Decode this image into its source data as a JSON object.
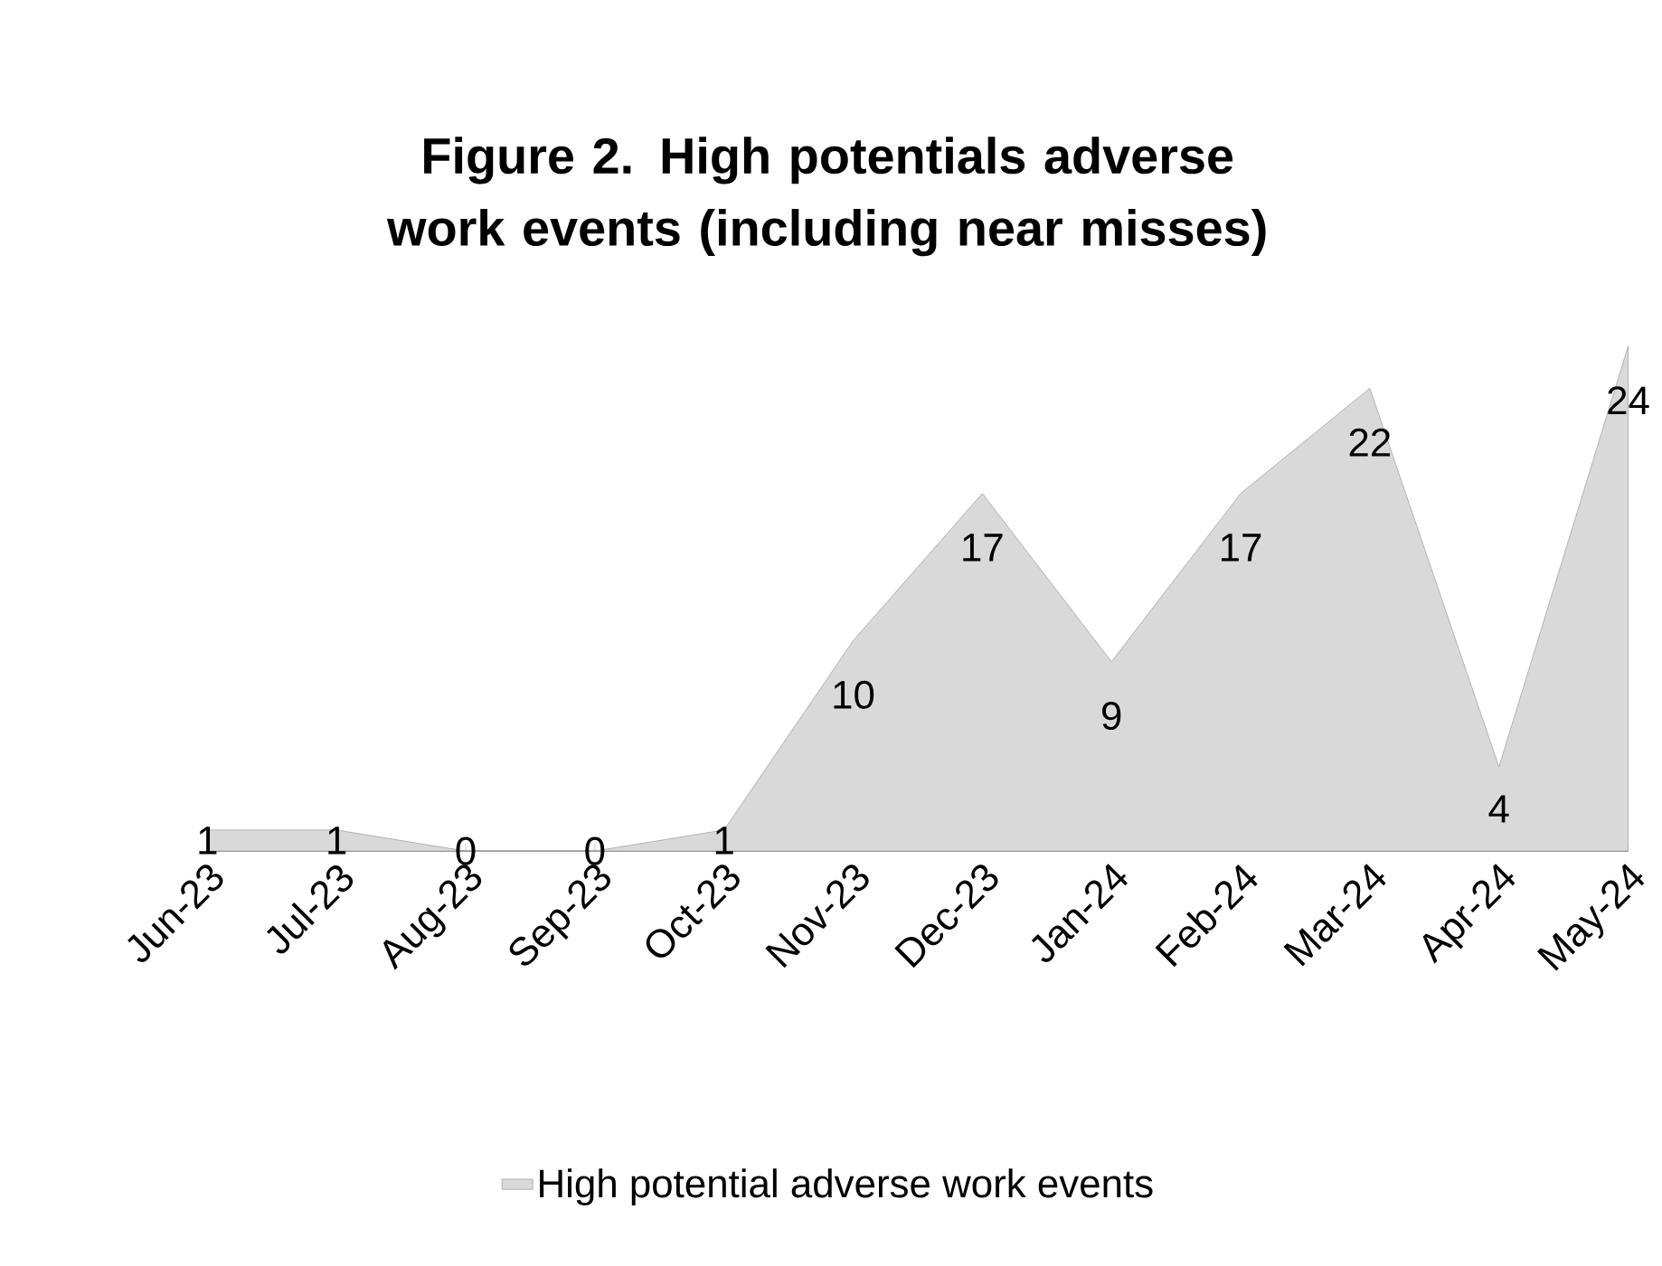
{
  "chart_data": {
    "type": "area",
    "title": "Figure 2. High potentials adverse work events (including near misses)",
    "categories": [
      "Jun-23",
      "Jul-23",
      "Aug-23",
      "Sep-23",
      "Oct-23",
      "Nov-23",
      "Dec-23",
      "Jan-24",
      "Feb-24",
      "Mar-24",
      "Apr-24",
      "May-24"
    ],
    "series": [
      {
        "name": "High potential adverse work events",
        "color": "#d9d9d9",
        "values": [
          1,
          1,
          0,
          0,
          1,
          10,
          17,
          9,
          17,
          22,
          4,
          24
        ]
      }
    ],
    "data_labels": true,
    "legend": "bottom"
  }
}
